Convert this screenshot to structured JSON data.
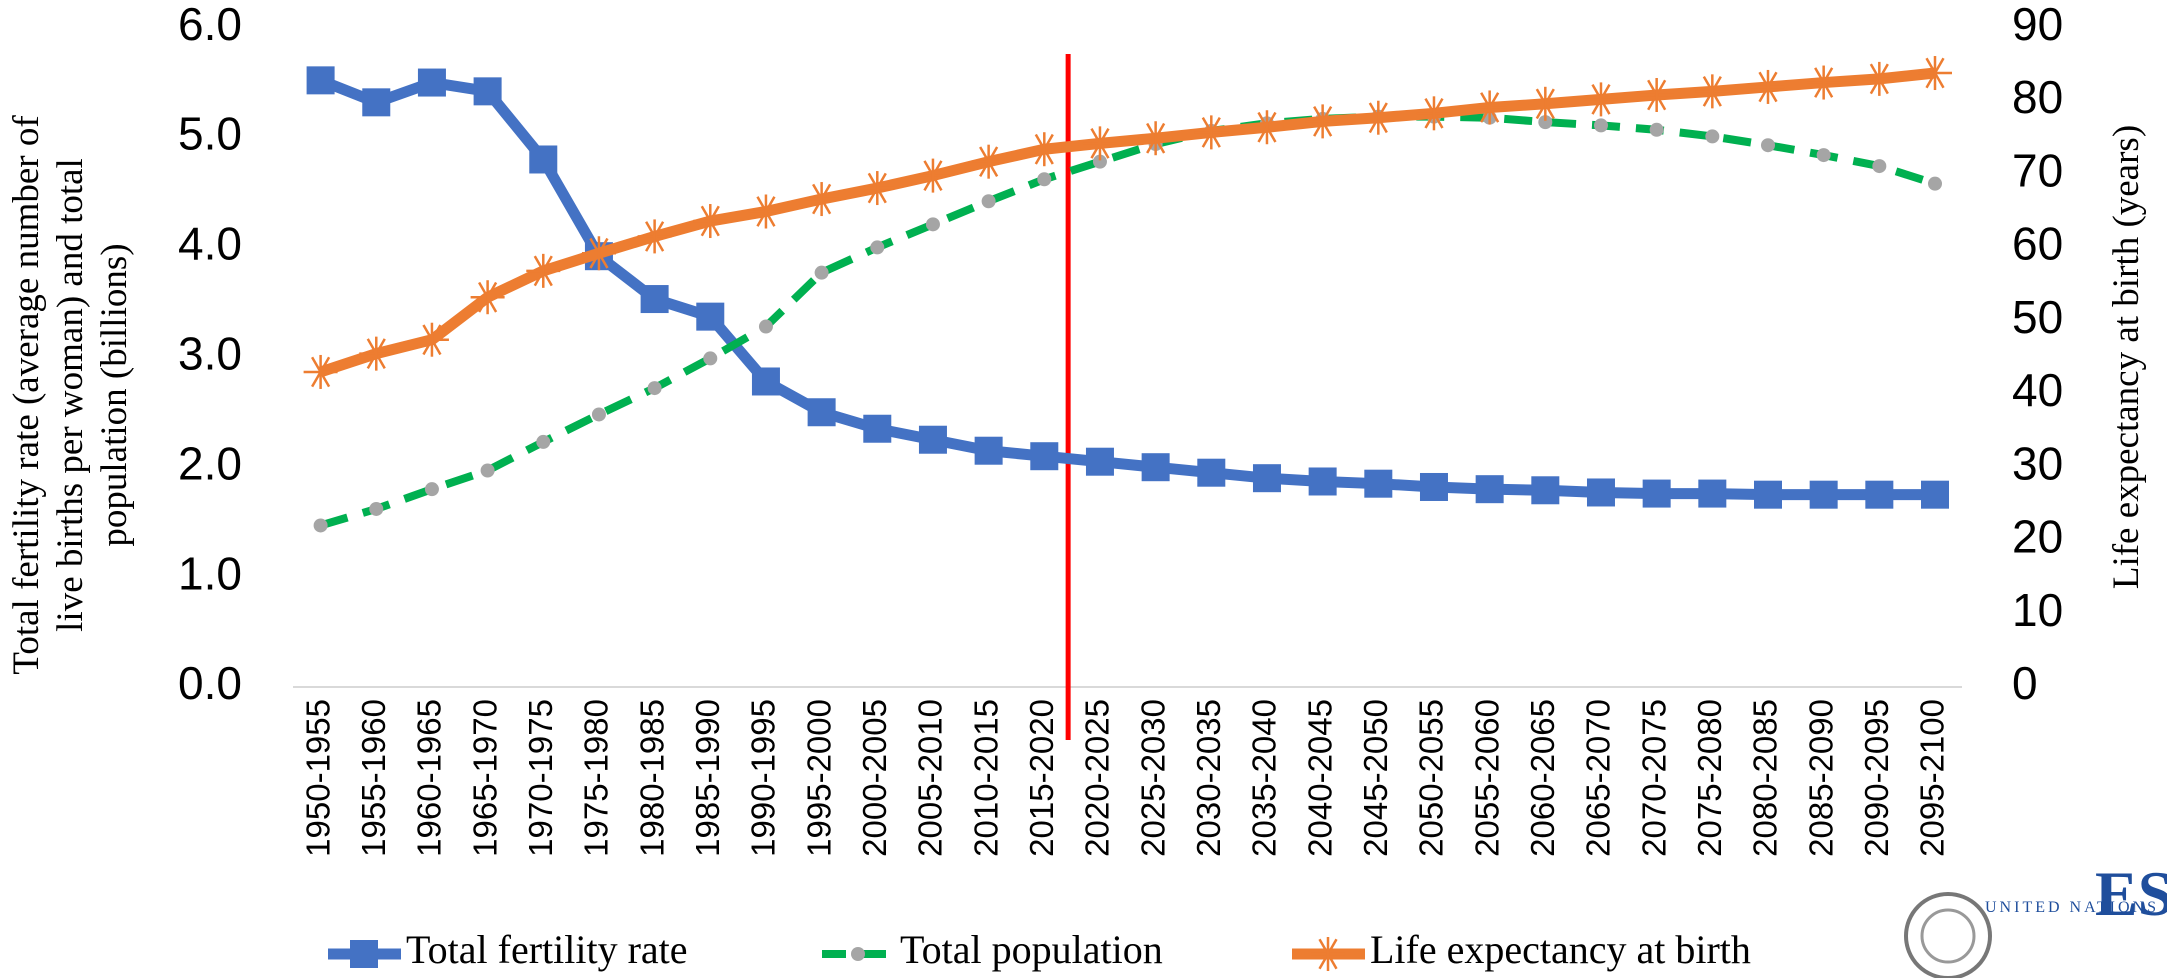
{
  "chart_data": {
    "type": "line",
    "categories": [
      "1950-1955",
      "1955-1960",
      "1960-1965",
      "1965-1970",
      "1970-1975",
      "1975-1980",
      "1980-1985",
      "1985-1990",
      "1990-1995",
      "1995-2000",
      "2000-2005",
      "2005-2010",
      "2010-2015",
      "2015-2020",
      "2020-2025",
      "2025-2030",
      "2030-2035",
      "2035-2040",
      "2040-2045",
      "2045-2050",
      "2050-2055",
      "2055-2060",
      "2060-2065",
      "2065-2070",
      "2070-2075",
      "2075-2080",
      "2080-2085",
      "2085-2090",
      "2090-2095",
      "2095-2100"
    ],
    "y_label": "Total fertility rate (average number of live births per woman) and total population (billions)",
    "y2_label": "Life expectancy at birth (years)",
    "ylim": [
      0,
      6
    ],
    "yticks": [
      {
        "value": 0,
        "label": "0.0"
      },
      {
        "value": 1,
        "label": "1.0"
      },
      {
        "value": 2,
        "label": "2.0"
      },
      {
        "value": 3,
        "label": "3.0"
      },
      {
        "value": 4,
        "label": "4.0"
      },
      {
        "value": 5,
        "label": "5.0"
      },
      {
        "value": 6,
        "label": "6.0"
      }
    ],
    "y2lim": [
      0,
      90
    ],
    "y2ticks": [
      0,
      10,
      20,
      30,
      40,
      50,
      60,
      70,
      80,
      90
    ],
    "legend": "bottom",
    "series": [
      {
        "name": "Total fertility rate",
        "color": "#4472c4",
        "values": [
          5.52,
          5.32,
          5.5,
          5.42,
          4.8,
          3.92,
          3.53,
          3.37,
          2.78,
          2.5,
          2.35,
          2.25,
          2.15,
          2.1,
          2.05,
          2.0,
          1.95,
          1.9,
          1.87,
          1.85,
          1.82,
          1.8,
          1.79,
          1.77,
          1.76,
          1.76,
          1.75,
          1.75,
          1.75,
          1.75
        ]
      },
      {
        "name": "Total population",
        "color": "#00b050",
        "values": [
          1.47,
          1.62,
          1.8,
          1.97,
          2.23,
          2.48,
          2.72,
          2.99,
          3.28,
          3.77,
          4.0,
          4.21,
          4.42,
          4.62,
          4.78,
          4.94,
          5.06,
          5.13,
          5.17,
          5.19,
          5.19,
          5.18,
          5.14,
          5.11,
          5.07,
          5.01,
          4.93,
          4.84,
          4.74,
          4.58
        ]
      },
      {
        "name": "Life expectancy at birth",
        "color": "#ed7d31",
        "axis": "y2",
        "values": [
          43.0,
          45.5,
          47.4,
          53.2,
          56.8,
          59.2,
          61.5,
          63.6,
          64.9,
          66.6,
          68.1,
          69.8,
          71.7,
          73.4,
          74.2,
          74.9,
          75.7,
          76.4,
          77.2,
          77.7,
          78.3,
          79.1,
          79.6,
          80.2,
          80.8,
          81.3,
          81.9,
          82.5,
          83.0,
          83.8
        ]
      }
    ]
  },
  "logo": {
    "top": "UNITED NATIONS",
    "name": "ESCAP"
  }
}
